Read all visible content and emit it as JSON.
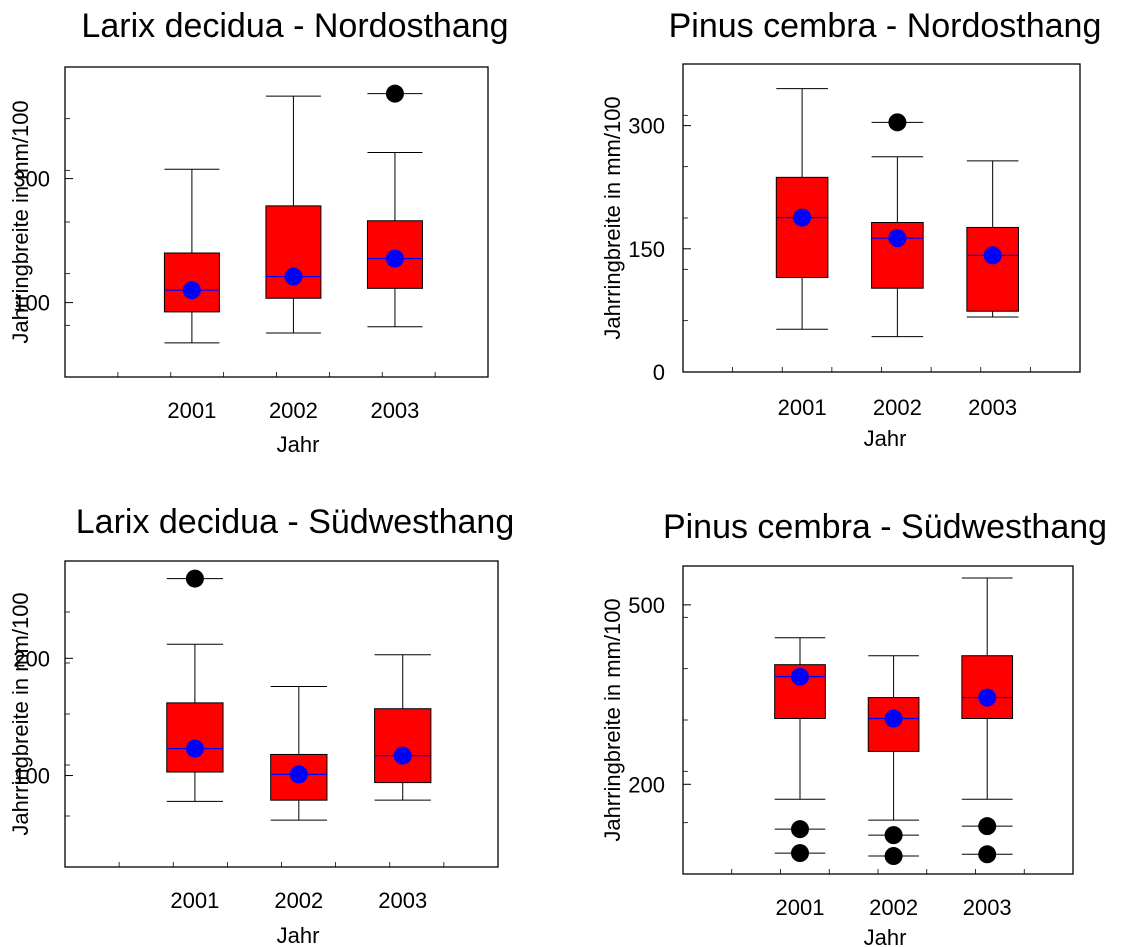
{
  "chart_data": [
    {
      "type": "box",
      "title": "Larix decidua - Nordosthang",
      "xlabel": "Jahr",
      "ylabel": "Jahrringbreite in mm/100",
      "categories": [
        "2001",
        "2002",
        "2003"
      ],
      "ylim": [
        -20,
        480
      ],
      "y_ticks": [
        100,
        300
      ],
      "boxes": [
        {
          "whisker_low": 35,
          "q1": 85,
          "median": 120,
          "q3": 180,
          "whisker_high": 315,
          "mean": 120,
          "outliers": []
        },
        {
          "whisker_low": 51,
          "q1": 107,
          "median": 142,
          "q3": 256,
          "whisker_high": 433,
          "mean": 142,
          "outliers": []
        },
        {
          "whisker_low": 61,
          "q1": 123,
          "median": 171,
          "q3": 232,
          "whisker_high": 342,
          "mean": 171,
          "outliers": [
            437
          ]
        }
      ],
      "box_color": "#ff0000",
      "mean_color": "#0000ff",
      "outlier_color": "#000000",
      "grid": false
    },
    {
      "type": "box",
      "title": "Pinus cembra - Nordosthang",
      "xlabel": "Jahr",
      "ylabel": "Jahrringbreite in mm/100",
      "categories": [
        "2001",
        "2002",
        "2003"
      ],
      "ylim": [
        0,
        375
      ],
      "y_ticks": [
        0,
        150,
        300
      ],
      "boxes": [
        {
          "whisker_low": 52,
          "q1": 115,
          "median": 188,
          "q3": 237,
          "whisker_high": 345,
          "mean": 188,
          "outliers": []
        },
        {
          "whisker_low": 43,
          "q1": 102,
          "median": 163,
          "q3": 182,
          "whisker_high": 262,
          "mean": 163,
          "outliers": [
            304
          ]
        },
        {
          "whisker_low": 67,
          "q1": 74,
          "median": 142,
          "q3": 176,
          "whisker_high": 257,
          "mean": 142,
          "outliers": []
        }
      ],
      "box_color": "#ff0000",
      "mean_color": "#0000ff",
      "outlier_color": "#000000",
      "grid": false
    },
    {
      "type": "box",
      "title": "Larix decidua - Südwesthang",
      "xlabel": "Jahr",
      "ylabel": "Jahrringbreite in mm/100",
      "categories": [
        "2001",
        "2002",
        "2003"
      ],
      "ylim": [
        22,
        283
      ],
      "y_ticks": [
        100,
        200
      ],
      "boxes": [
        {
          "whisker_low": 78,
          "q1": 103,
          "median": 123,
          "q3": 162,
          "whisker_high": 212,
          "mean": 123,
          "outliers": [
            268
          ]
        },
        {
          "whisker_low": 62,
          "q1": 79,
          "median": 101,
          "q3": 118,
          "whisker_high": 176,
          "mean": 101,
          "outliers": []
        },
        {
          "whisker_low": 79,
          "q1": 94,
          "median": 117,
          "q3": 157,
          "whisker_high": 203,
          "mean": 117,
          "outliers": []
        }
      ],
      "box_color": "#ff0000",
      "mean_color": "#0000ff",
      "outlier_color": "#000000",
      "grid": false
    },
    {
      "type": "box",
      "title": "Pinus cembra - Südwesthang",
      "xlabel": "Jahr",
      "ylabel": "Jahrringbreite in mm/100",
      "categories": [
        "2001",
        "2002",
        "2003"
      ],
      "ylim": [
        50,
        565
      ],
      "y_ticks": [
        200,
        500
      ],
      "boxes": [
        {
          "whisker_low": 175,
          "q1": 310,
          "median": 380,
          "q3": 400,
          "whisker_high": 445,
          "mean": 380,
          "outliers": [
            125,
            85
          ]
        },
        {
          "whisker_low": 140,
          "q1": 255,
          "median": 310,
          "q3": 345,
          "whisker_high": 415,
          "mean": 310,
          "outliers": [
            115,
            80
          ]
        },
        {
          "whisker_low": 175,
          "q1": 310,
          "median": 345,
          "q3": 415,
          "whisker_high": 545,
          "mean": 345,
          "outliers": [
            130,
            83
          ]
        }
      ],
      "box_color": "#ff0000",
      "mean_color": "#0000ff",
      "outlier_color": "#000000",
      "grid": false
    }
  ]
}
